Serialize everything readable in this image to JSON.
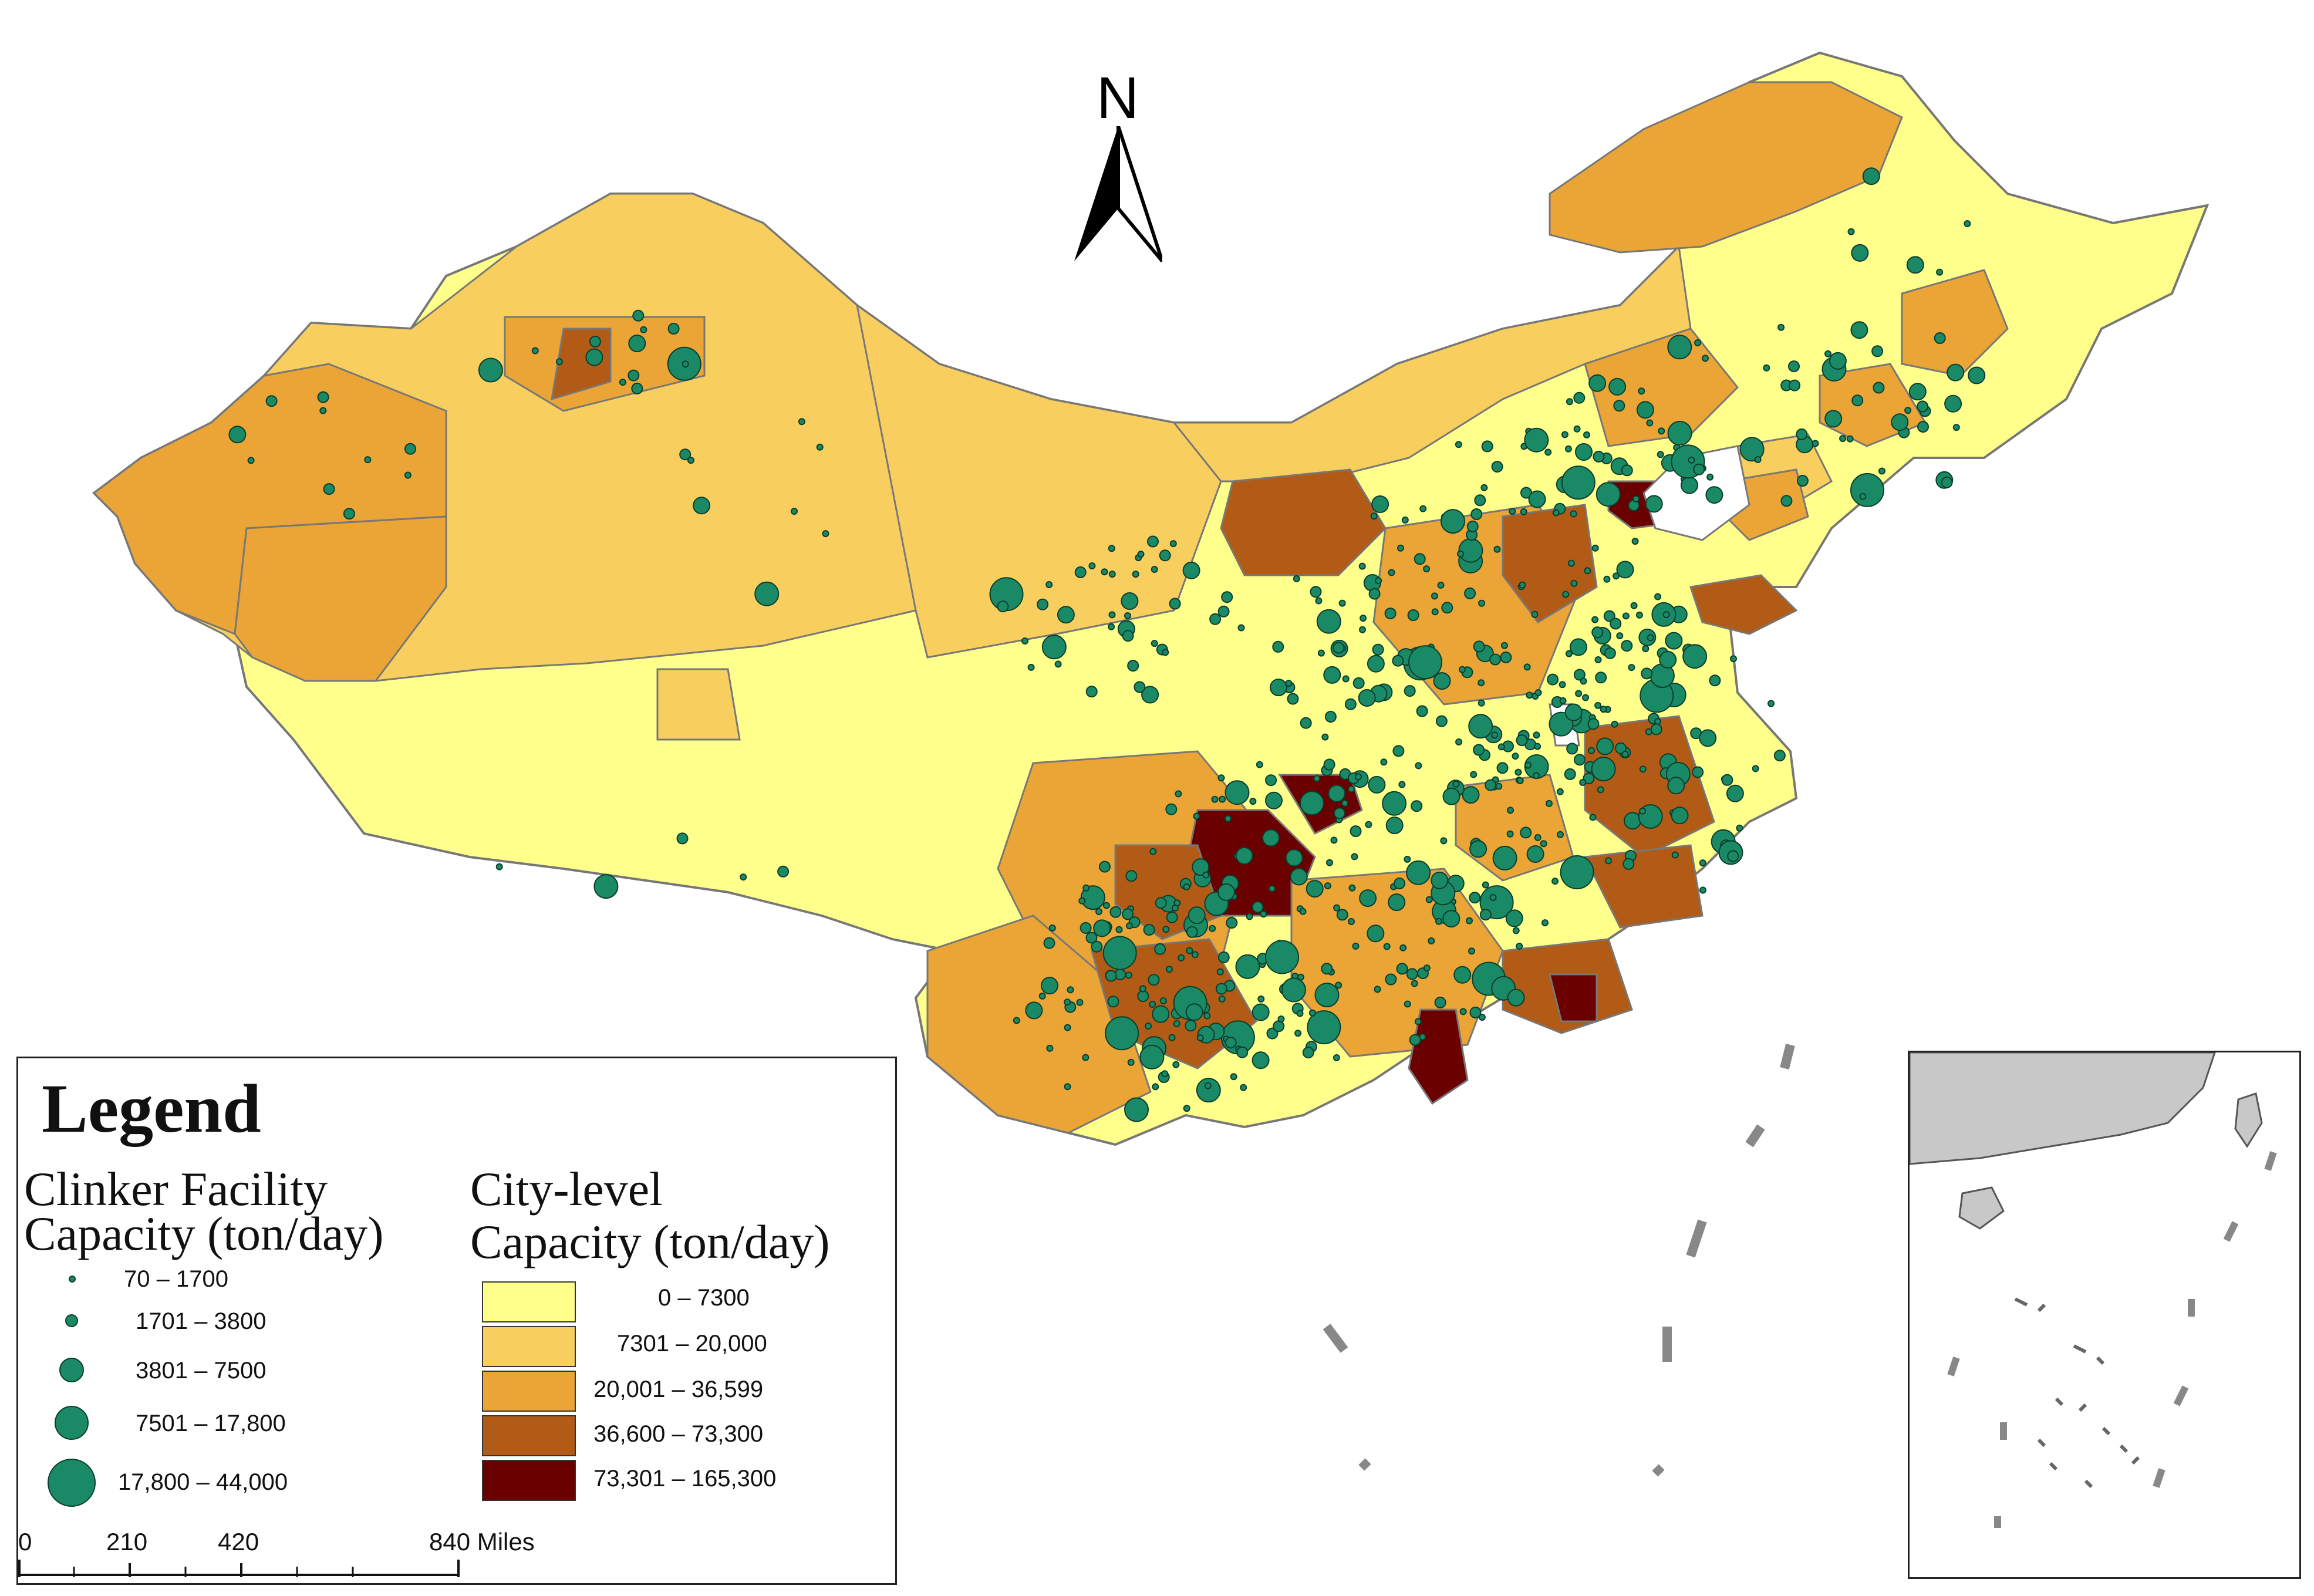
{
  "north_arrow": {
    "label": "N"
  },
  "legend": {
    "title": "Legend",
    "facility_title_line1": "Clinker Facility",
    "facility_title_line2": "Capacity (ton/day)",
    "facility_classes": [
      "70 – 1700",
      "1701 – 3800",
      "3801 – 7500",
      "7501 – 17,800",
      "17,800 – 44,000"
    ],
    "city_title_line1": "City-level",
    "city_title_line2": "Capacity (ton/day)",
    "city_classes": [
      "0 – 7300",
      "7301 – 20,000",
      "20,001 – 36,599",
      "36,600 – 73,300",
      "73,301 – 165,300"
    ],
    "city_colors": [
      "#ffff8c",
      "#f8cf5e",
      "#eba536",
      "#b25b16",
      "#6a0000"
    ],
    "facility_color": "#1a8a66"
  },
  "scale_bar": {
    "labels": [
      "0",
      "210",
      "420",
      "840 Miles"
    ]
  }
}
